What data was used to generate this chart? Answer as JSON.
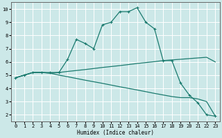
{
  "xlabel": "Humidex (Indice chaleur)",
  "ylabel": "",
  "background_color": "#cce8e8",
  "grid_color": "#ffffff",
  "line_color": "#1a7a6e",
  "xlim": [
    -0.5,
    23.5
  ],
  "ylim": [
    1.5,
    10.5
  ],
  "xticks": [
    0,
    1,
    2,
    3,
    4,
    5,
    6,
    7,
    8,
    9,
    10,
    11,
    12,
    13,
    14,
    15,
    16,
    17,
    18,
    19,
    20,
    21,
    22,
    23
  ],
  "yticks": [
    2,
    3,
    4,
    5,
    6,
    7,
    8,
    9,
    10
  ],
  "line1_x": [
    0,
    1,
    2,
    3,
    4,
    5,
    6,
    7,
    8,
    9,
    10,
    11,
    12,
    13,
    14,
    15,
    16,
    17,
    18,
    19,
    20,
    21,
    22,
    23
  ],
  "line1_y": [
    4.8,
    5.0,
    5.2,
    5.2,
    5.2,
    5.2,
    6.2,
    7.7,
    7.4,
    7.0,
    8.8,
    9.0,
    9.8,
    9.8,
    10.1,
    9.0,
    8.5,
    6.1,
    6.1,
    4.4,
    3.5,
    2.9,
    2.0,
    1.9
  ],
  "line2_x": [
    0,
    1,
    2,
    3,
    4,
    5,
    6,
    7,
    8,
    9,
    10,
    11,
    12,
    13,
    14,
    15,
    16,
    17,
    18,
    19,
    20,
    21,
    22,
    23
  ],
  "line2_y": [
    4.8,
    5.0,
    5.2,
    5.2,
    5.15,
    5.2,
    5.28,
    5.35,
    5.42,
    5.5,
    5.58,
    5.65,
    5.72,
    5.8,
    5.88,
    5.95,
    6.02,
    6.1,
    6.15,
    6.2,
    6.25,
    6.3,
    6.35,
    6.0
  ],
  "line3_x": [
    0,
    1,
    2,
    3,
    4,
    5,
    6,
    7,
    8,
    9,
    10,
    11,
    12,
    13,
    14,
    15,
    16,
    17,
    18,
    19,
    20,
    21,
    22,
    23
  ],
  "line3_y": [
    4.8,
    5.0,
    5.2,
    5.2,
    5.15,
    5.0,
    4.88,
    4.75,
    4.62,
    4.5,
    4.38,
    4.25,
    4.12,
    4.0,
    3.88,
    3.75,
    3.62,
    3.5,
    3.38,
    3.3,
    3.3,
    3.2,
    3.0,
    1.9
  ]
}
